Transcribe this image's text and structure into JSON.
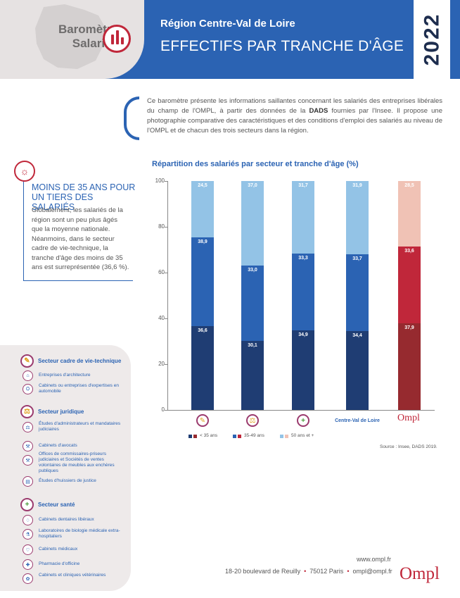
{
  "header": {
    "logo_line1": "Baromètre",
    "logo_line2": "Salariés",
    "region": "Région Centre-Val de Loire",
    "title": "EFFECTIFS PAR TRANCHE D'ÂGE",
    "year": "2022",
    "colors": {
      "blue": "#2b63b3",
      "red": "#c0273a",
      "navy": "#1d2d4e"
    }
  },
  "intro": {
    "part1": "Ce baromètre présente les informations saillantes concernant les salariés des entreprises libérales du champ de l'OMPL, à partir des données de la ",
    "bold": "DADS",
    "part2": " fournies par l'Insee. Il propose une photographie comparative des caractéristiques et des conditions d'emploi des salariés au niveau de l'OMPL et de chacun des trois secteurs dans la région."
  },
  "key_point": {
    "icon": "lightbulb-icon",
    "title": "MOINS DE 35 ANS POUR UN TIERS DES SALARIÉS",
    "body": "Globalement, les salariés de la région sont un peu plus âgés que la moyenne nationale. Néanmoins, dans le secteur cadre de vie-technique, la tranche d'âge des moins de 35 ans est surreprésentée (36,6 %)."
  },
  "chart_data": {
    "type": "bar",
    "stacked": true,
    "title": "Répartition des salariés par secteur et tranche d'âge (%)",
    "ylim": [
      0,
      100
    ],
    "yticks": [
      "0",
      "20",
      "40",
      "60",
      "80",
      "100"
    ],
    "categories": [
      "Secteur cadre de vie-technique",
      "Secteur juridique",
      "Secteur santé",
      "Centre-Val de Loire",
      "Ompl"
    ],
    "category_labels": [
      "",
      "",
      "",
      "Centre-Val de Loire",
      "Ompl"
    ],
    "category_icons": [
      "compass-icon",
      "scales-icon",
      "medical-cross-icon",
      "",
      ""
    ],
    "series": [
      {
        "name": "< 35 ans",
        "values": [
          36.6,
          30.1,
          34.9,
          34.4,
          37.9
        ],
        "labels": [
          "36,6",
          "30,1",
          "34,9",
          "34,4",
          "37,9"
        ],
        "colors": [
          "#1f3d73",
          "#1f3d73",
          "#1f3d73",
          "#1f3d73",
          "#962a2f"
        ]
      },
      {
        "name": "35-49 ans",
        "values": [
          38.9,
          33.0,
          33.3,
          33.7,
          33.6
        ],
        "labels": [
          "38,9",
          "33,0",
          "33,3",
          "33,7",
          "33,6"
        ],
        "colors": [
          "#2b63b3",
          "#2b63b3",
          "#2b63b3",
          "#2b63b3",
          "#c0273a"
        ]
      },
      {
        "name": "50 ans et +",
        "values": [
          24.5,
          37.0,
          31.7,
          31.9,
          28.5
        ],
        "labels": [
          "24,5",
          "37,0",
          "31,7",
          "31,9",
          "28,5"
        ],
        "colors": [
          "#93c3e6",
          "#93c3e6",
          "#93c3e6",
          "#93c3e6",
          "#f0c2b5"
        ]
      }
    ],
    "legend": [
      {
        "name": "< 35 ans",
        "colors": [
          "#1f3d73",
          "#962a2f"
        ]
      },
      {
        "name": "35-49 ans",
        "colors": [
          "#2b63b3",
          "#c0273a"
        ]
      },
      {
        "name": "50 ans et +",
        "colors": [
          "#93c3e6",
          "#f0c2b5"
        ]
      }
    ],
    "source": "Source : Insee, DADS 2019."
  },
  "sectors": [
    {
      "title": "Secteur cadre de vie-technique",
      "icon": "compass-icon",
      "items": [
        {
          "label": "Entreprises d'architecture",
          "icon": "architecture-icon"
        },
        {
          "label": "Cabinets ou entreprises d'expertises en automobile",
          "icon": "car-icon"
        }
      ]
    },
    {
      "title": "Secteur juridique",
      "icon": "scales-icon",
      "items": [
        {
          "label": "Études d'administrateurs et mandataires judiciaires",
          "icon": "scales-icon"
        },
        {
          "label": "Cabinets d'avocats",
          "icon": "gavel-icon"
        },
        {
          "label": "Offices de commissaires-priseurs judiciaires et Sociétés de ventes volontaires de meubles aux enchères publiques",
          "icon": "hammer-icon"
        },
        {
          "label": "Études d'huissiers de justice",
          "icon": "document-icon"
        }
      ]
    },
    {
      "title": "Secteur santé",
      "icon": "medical-cross-icon",
      "items": [
        {
          "label": "Cabinets dentaires libéraux",
          "icon": "tooth-icon"
        },
        {
          "label": "Laboratoires de biologie médicale extra-hospitaliers",
          "icon": "flask-icon"
        },
        {
          "label": "Cabinets médicaux",
          "icon": "stethoscope-icon"
        },
        {
          "label": "Pharmacie d'officine",
          "icon": "pharmacy-icon"
        },
        {
          "label": "Cabinets et cliniques vétérinaires",
          "icon": "paw-icon"
        }
      ]
    }
  ],
  "footer": {
    "website": "www.ompl.fr",
    "address": "18-20 boulevard de Reuilly",
    "city": "75012 Paris",
    "email": "ompl@ompl.fr",
    "logo": "Ompl"
  }
}
